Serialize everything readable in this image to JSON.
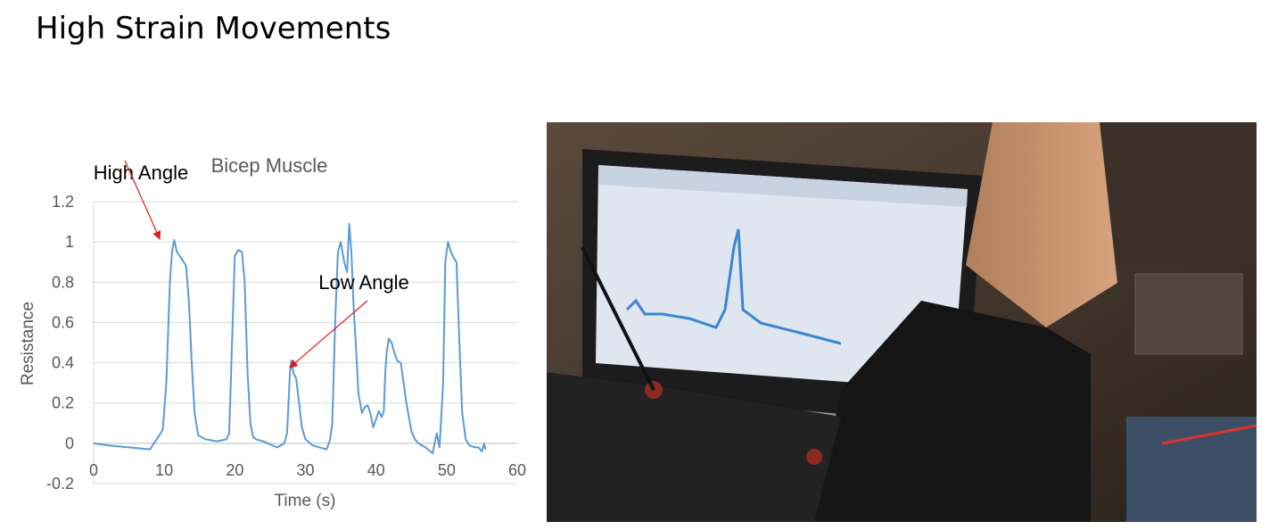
{
  "slide": {
    "title": "High Strain Movements"
  },
  "chart_data": {
    "type": "line",
    "title": "Bicep Muscle",
    "xlabel": "Time (s)",
    "ylabel": "Resistance",
    "xlim": [
      0,
      60
    ],
    "ylim": [
      -0.2,
      1.2
    ],
    "x_ticks": [
      "0",
      "10",
      "20",
      "30",
      "40",
      "50",
      "60"
    ],
    "y_ticks": [
      "-0.2",
      "0",
      "0.2",
      "0.4",
      "0.6",
      "0.8",
      "1",
      "1.2"
    ],
    "grid": "horizontal",
    "legend": "none",
    "color": "#5b9bd5",
    "series": [
      {
        "x": [
          0,
          2,
          5,
          8,
          9.5,
          9.8,
          10.3,
          10.8,
          11.1,
          11.4,
          11.8,
          12.4,
          13.1,
          13.5,
          13.9,
          14.3,
          14.8,
          15.8,
          17.5,
          18.8,
          19.2,
          19.6,
          20.0,
          20.5,
          21.0,
          21.4,
          21.8,
          22.2,
          22.6,
          23.0,
          24,
          26,
          27.0,
          27.4,
          27.8,
          28.0,
          28.3,
          28.7,
          29.1,
          29.5,
          30.0,
          31,
          32,
          33,
          33.5,
          33.8,
          34.2,
          34.6,
          35.0,
          35.5,
          35.9,
          36.2,
          36.5,
          36.8,
          37.2,
          37.5,
          38.0,
          38.4,
          38.8,
          39.2,
          39.6,
          40.0,
          40.4,
          40.8,
          41.1,
          41.3,
          41.5,
          41.8,
          42.2,
          42.6,
          43.0,
          43.5,
          44.3,
          45.0,
          45.5,
          46,
          47,
          48,
          48.6,
          49.0,
          49.5,
          49.8,
          50.2,
          50.6,
          51.0,
          51.4,
          51.8,
          52.2,
          52.7,
          53.2,
          54,
          54.5,
          55.0,
          55.3,
          55.5
        ],
        "values": [
          0,
          -0.01,
          -0.02,
          -0.03,
          0.05,
          0.07,
          0.3,
          0.8,
          0.95,
          1.01,
          0.95,
          0.92,
          0.88,
          0.7,
          0.4,
          0.15,
          0.04,
          0.02,
          0.01,
          0.02,
          0.05,
          0.5,
          0.93,
          0.96,
          0.95,
          0.8,
          0.35,
          0.1,
          0.03,
          0.02,
          0.01,
          -0.02,
          0.0,
          0.05,
          0.35,
          0.41,
          0.35,
          0.32,
          0.2,
          0.08,
          0.02,
          -0.01,
          -0.02,
          -0.03,
          0.02,
          0.1,
          0.6,
          0.95,
          1.0,
          0.9,
          0.85,
          1.09,
          0.95,
          0.7,
          0.45,
          0.25,
          0.15,
          0.18,
          0.19,
          0.15,
          0.08,
          0.12,
          0.16,
          0.13,
          0.16,
          0.35,
          0.45,
          0.52,
          0.5,
          0.45,
          0.41,
          0.4,
          0.2,
          0.06,
          0.02,
          0.0,
          -0.02,
          -0.05,
          0.05,
          -0.02,
          0.3,
          0.9,
          1.0,
          0.95,
          0.92,
          0.9,
          0.5,
          0.15,
          0.02,
          -0.01,
          -0.02,
          -0.02,
          -0.04,
          0.0,
          -0.03
        ]
      }
    ],
    "annotations": [
      {
        "text": "High Angle",
        "x": 9.3,
        "y": 1.02
      },
      {
        "text": "Low Angle",
        "x": 27.9,
        "y": 0.38
      }
    ]
  }
}
